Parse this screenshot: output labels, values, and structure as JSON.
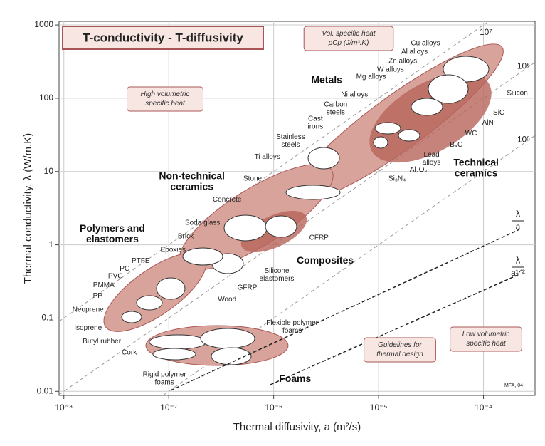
{
  "chart_data": {
    "type": "scatter",
    "title": "T-conductivity - T-diffusivity",
    "xlabel": "Thermal diffusivity, a (m²/s)",
    "ylabel": "Thermal conductivity, λ (W/m.K)",
    "log_x": true,
    "log_y": true,
    "grid": true,
    "xlim": [
      9e-09,
      0.00031
    ],
    "ylim": [
      0.0088,
      1120
    ],
    "xticks": [
      {
        "value": 1e-08,
        "label": "10⁻⁸"
      },
      {
        "value": 1e-07,
        "label": "10⁻⁷"
      },
      {
        "value": 1e-06,
        "label": "10⁻⁶"
      },
      {
        "value": 1e-05,
        "label": "10⁻⁵"
      },
      {
        "value": 0.0001,
        "label": "10⁻⁴"
      }
    ],
    "yticks": [
      0.01,
      0.1,
      1,
      10,
      100,
      1000
    ],
    "contours": {
      "lines": [
        "Vol. specific heat",
        "ρCp  (J/m³.K)"
      ],
      "values": [
        {
          "value": 10000000.0,
          "label": "10⁷"
        },
        {
          "value": 1000000.0,
          "label": "10⁶"
        },
        {
          "value": 100000.0,
          "label": "10⁵"
        }
      ]
    },
    "annotations": [
      {
        "lines": [
          "High volumetric",
          "specific heat"
        ]
      },
      {
        "lines": [
          "Low volumetric",
          "specific heat"
        ]
      },
      {
        "lines": [
          "Guidelines for",
          "thermal design"
        ]
      },
      {
        "lines": [
          "MFA, 04"
        ]
      }
    ],
    "guide_labels": [
      {
        "num": "λ",
        "den": "a"
      },
      {
        "num": "λ",
        "den": "a¹ᐟ²"
      }
    ],
    "labels": [
      {
        "lines": [
          "Metals"
        ],
        "x": 3.2e-06,
        "y": 175,
        "bold": true
      },
      {
        "lines": [
          "Non-technical",
          "ceramics"
        ],
        "x": 1.66e-07,
        "y": 7.2,
        "bold": true
      },
      {
        "lines": [
          "Polymers and",
          "elastomers"
        ],
        "x": 2.9e-08,
        "y": 1.4,
        "bold": true
      },
      {
        "lines": [
          "Composites"
        ],
        "x": 3.1e-06,
        "y": 0.6,
        "bold": true
      },
      {
        "lines": [
          "Foams"
        ],
        "x": 1.6e-06,
        "y": 0.0147,
        "bold": true
      },
      {
        "lines": [
          "Technical",
          "ceramics"
        ],
        "x": 8.5e-05,
        "y": 11,
        "bold": true
      },
      {
        "lines": [
          "Cu alloys"
        ],
        "x": 2.8e-05,
        "y": 560
      },
      {
        "lines": [
          "Al alloys"
        ],
        "x": 2.2e-05,
        "y": 430
      },
      {
        "lines": [
          "Zn alloys"
        ],
        "x": 1.7e-05,
        "y": 320
      },
      {
        "lines": [
          "W alloys"
        ],
        "x": 1.3e-05,
        "y": 245
      },
      {
        "lines": [
          "Mg alloys"
        ],
        "x": 8.5e-06,
        "y": 195
      },
      {
        "lines": [
          "Ni alloys"
        ],
        "x": 5.9e-06,
        "y": 112
      },
      {
        "lines": [
          "Carbon",
          "steels"
        ],
        "x": 3.9e-06,
        "y": 72
      },
      {
        "lines": [
          "Cast",
          "irons"
        ],
        "x": 2.5e-06,
        "y": 46
      },
      {
        "lines": [
          "Stainless",
          "steels"
        ],
        "x": 1.45e-06,
        "y": 26
      },
      {
        "lines": [
          "Ti alloys"
        ],
        "x": 8.7e-07,
        "y": 15.7
      },
      {
        "lines": [
          "Stone"
        ],
        "x": 6.3e-07,
        "y": 8
      },
      {
        "lines": [
          "Concrete"
        ],
        "x": 3.6e-07,
        "y": 4.1
      },
      {
        "lines": [
          "Soda glass"
        ],
        "x": 2.1e-07,
        "y": 2.0
      },
      {
        "lines": [
          "Brick"
        ],
        "x": 1.45e-07,
        "y": 1.3
      },
      {
        "lines": [
          "Epoxies"
        ],
        "x": 1.1e-07,
        "y": 0.85
      },
      {
        "lines": [
          "CFRP"
        ],
        "x": 2.7e-06,
        "y": 1.25
      },
      {
        "lines": [
          "PTFE"
        ],
        "x": 5.4e-08,
        "y": 0.6
      },
      {
        "lines": [
          "PC"
        ],
        "x": 3.8e-08,
        "y": 0.47
      },
      {
        "lines": [
          "PVC"
        ],
        "x": 3.1e-08,
        "y": 0.37
      },
      {
        "lines": [
          "PMMA"
        ],
        "x": 2.4e-08,
        "y": 0.28
      },
      {
        "lines": [
          "PP"
        ],
        "x": 2.1e-08,
        "y": 0.2
      },
      {
        "lines": [
          "Neoprene"
        ],
        "x": 1.7e-08,
        "y": 0.13
      },
      {
        "lines": [
          "Isoprene"
        ],
        "x": 1.7e-08,
        "y": 0.073
      },
      {
        "lines": [
          "Butyl rubber"
        ],
        "x": 2.3e-08,
        "y": 0.048
      },
      {
        "lines": [
          "Cork"
        ],
        "x": 4.2e-08,
        "y": 0.034
      },
      {
        "lines": [
          "Rigid polymer",
          "foams"
        ],
        "x": 9.1e-08,
        "y": 0.015
      },
      {
        "lines": [
          "Flexible polymer",
          "foams"
        ],
        "x": 1.5e-06,
        "y": 0.076
      },
      {
        "lines": [
          "Silicone",
          "elastomers"
        ],
        "x": 1.07e-06,
        "y": 0.39
      },
      {
        "lines": [
          "GFRP"
        ],
        "x": 5.6e-07,
        "y": 0.26
      },
      {
        "lines": [
          "Wood"
        ],
        "x": 3.6e-07,
        "y": 0.18
      },
      {
        "lines": [
          "Silicon"
        ],
        "x": 0.00021,
        "y": 117
      },
      {
        "lines": [
          "SiC"
        ],
        "x": 0.00014,
        "y": 63
      },
      {
        "lines": [
          "AlN"
        ],
        "x": 0.00011,
        "y": 46
      },
      {
        "lines": [
          "WC"
        ],
        "x": 7.6e-05,
        "y": 33
      },
      {
        "lines": [
          "B₄C"
        ],
        "x": 5.5e-05,
        "y": 23
      },
      {
        "lines": [
          "Lead",
          "alloys"
        ],
        "x": 3.2e-05,
        "y": 15
      },
      {
        "lines": [
          "Al₂O₃"
        ],
        "x": 2.4e-05,
        "y": 10.5
      },
      {
        "lines": [
          "Si₃N₄"
        ],
        "x": 1.5e-05,
        "y": 8
      }
    ]
  }
}
